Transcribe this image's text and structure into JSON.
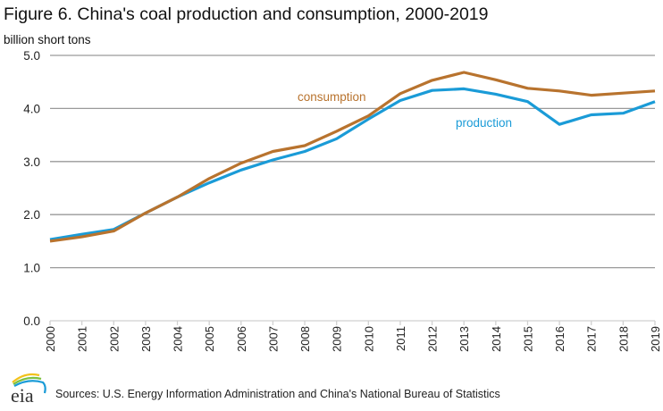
{
  "chart_data": {
    "type": "line",
    "title": "Figure 6. China's coal production and consumption, 2000-2019",
    "ylabel": "billion short tons",
    "xlabel": "",
    "ylim": [
      0,
      5
    ],
    "yticks": [
      0.0,
      1.0,
      2.0,
      3.0,
      4.0,
      5.0
    ],
    "ytick_labels": [
      "0.0",
      "1.0",
      "2.0",
      "3.0",
      "4.0",
      "5.0"
    ],
    "grid": true,
    "x": [
      "2000",
      "2001",
      "2002",
      "2003",
      "2004",
      "2005",
      "2006",
      "2007",
      "2008",
      "2009",
      "2010",
      "2011",
      "2012",
      "2013",
      "2014",
      "2015",
      "2016",
      "2017",
      "2018",
      "2019"
    ],
    "series": [
      {
        "name": "consumption",
        "color": "#b8732e",
        "label_position": "above line near 2009",
        "values": [
          1.5,
          1.58,
          1.69,
          2.03,
          2.33,
          2.68,
          2.97,
          3.19,
          3.3,
          3.57,
          3.86,
          4.28,
          4.53,
          4.68,
          4.54,
          4.38,
          4.33,
          4.25,
          4.29,
          4.33
        ]
      },
      {
        "name": "production",
        "color": "#1a9bd7",
        "label_position": "below line near 2014",
        "values": [
          1.53,
          1.63,
          1.72,
          2.03,
          2.33,
          2.6,
          2.84,
          3.03,
          3.19,
          3.43,
          3.8,
          4.15,
          4.34,
          4.37,
          4.27,
          4.13,
          3.7,
          3.88,
          3.91,
          4.13
        ]
      }
    ],
    "legend": "inline labels"
  },
  "source": "Sources: U.S. Energy Information Administration and China's National Bureau of Statistics",
  "logo": {
    "text": "eia",
    "icon": "eia-logo-icon"
  },
  "colors": {
    "gridline": "#9a9a9a",
    "axis": "#d0d0d0",
    "text": "#222222"
  }
}
